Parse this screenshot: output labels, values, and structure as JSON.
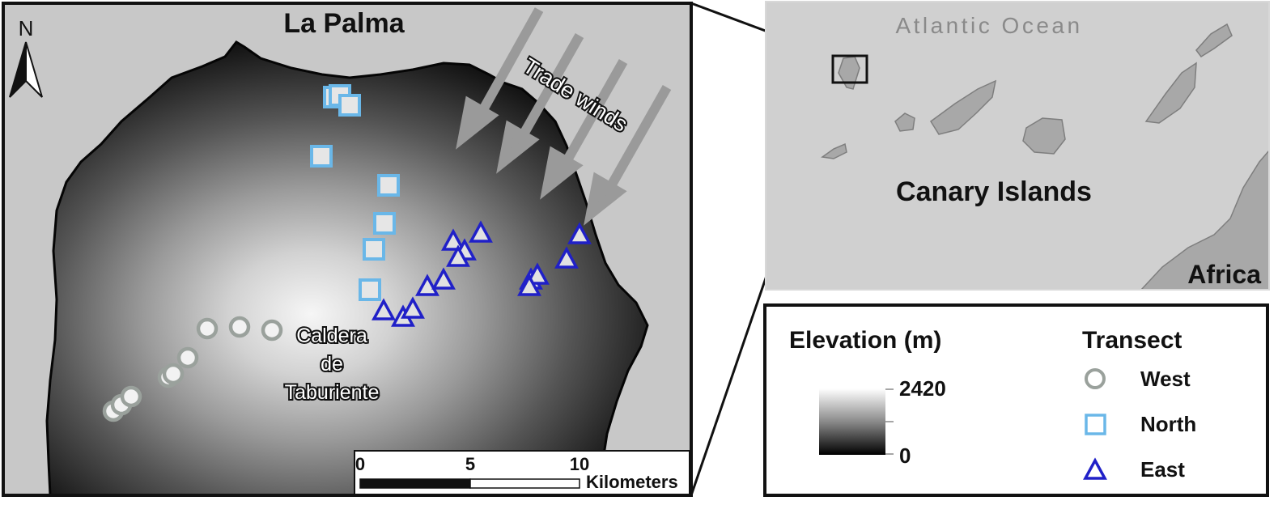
{
  "main_map": {
    "title": "La Palma",
    "north_label": "N",
    "trade_winds_label": "Trade winds",
    "caldera_label": [
      "Caldera",
      "de",
      "Taburiente"
    ],
    "scale_bar": {
      "ticks": [
        "0",
        "5",
        "10"
      ],
      "unit": "Kilometers"
    }
  },
  "inset_map": {
    "ocean_label": "Atlantic Ocean",
    "region_label": "Canary Islands",
    "continent_label": "Africa"
  },
  "legend": {
    "elevation_title": "Elevation (m)",
    "elevation_max": "2420",
    "elevation_min": "0",
    "transect_title": "Transect",
    "items": [
      {
        "label": "West",
        "symbol": "circle",
        "color": "#9aa19c"
      },
      {
        "label": "North",
        "symbol": "square",
        "color": "#6ab7e8"
      },
      {
        "label": "East",
        "symbol": "triangle",
        "color": "#2020c8"
      }
    ]
  },
  "colors": {
    "sea": "#c8c8c8",
    "land_inset": "#a8a8a8",
    "wind_arrow": "#9a9a9a"
  }
}
